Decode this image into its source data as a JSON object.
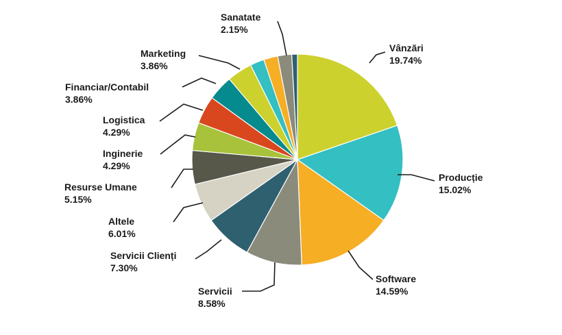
{
  "chart_data": {
    "type": "pie",
    "start": "top",
    "direction": "clockwise",
    "slices": [
      {
        "label": "Vânzări",
        "value": "19.74%",
        "pct": 19.74,
        "color": "#CCD12E"
      },
      {
        "label": "Producție",
        "value": "15.02%",
        "pct": 15.02,
        "color": "#34BFC2"
      },
      {
        "label": "Software",
        "value": "14.59%",
        "pct": 14.59,
        "color": "#F6AE25"
      },
      {
        "label": "Servicii",
        "value": "8.58%",
        "pct": 8.58,
        "color": "#8B8B7C"
      },
      {
        "label": "Servicii Clienți",
        "value": "7.30%",
        "pct": 7.3,
        "color": "#2E6070"
      },
      {
        "label": "Altele",
        "value": "6.01%",
        "pct": 6.01,
        "color": "#D6D2C4"
      },
      {
        "label": "Resurse Umane",
        "value": "5.15%",
        "pct": 5.15,
        "color": "#57574A"
      },
      {
        "label": "Inginerie",
        "value": "4.29%",
        "pct": 4.29,
        "color": "#A8C23B"
      },
      {
        "label": "Logistica",
        "value": "4.29%",
        "pct": 4.29,
        "color": "#D9471F"
      },
      {
        "label": "Financiar/Contabil",
        "value": "3.86%",
        "pct": 3.86,
        "color": "#058A8E"
      },
      {
        "label": "Marketing",
        "value": "3.86%",
        "pct": 3.86,
        "color": "#CCD12E"
      },
      {
        "label": "",
        "value": "",
        "pct": 2.15,
        "color": "#34BFC2"
      },
      {
        "label": "",
        "value": "",
        "pct": 2.15,
        "color": "#F6AE25"
      },
      {
        "label": "Sanatate",
        "value": "2.15%",
        "pct": 2.15,
        "color": "#8B8B7C"
      },
      {
        "label": "",
        "value": "",
        "pct": 0.86,
        "color": "#2E6070"
      }
    ]
  }
}
